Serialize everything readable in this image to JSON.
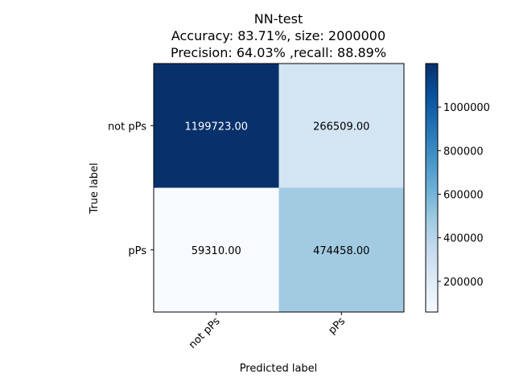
{
  "chart_data": {
    "type": "heatmap",
    "title_lines": [
      "NN-test",
      "Accuracy: 83.71%, size: 2000000",
      "Precision: 64.03% ,recall: 88.89%"
    ],
    "xlabel": "Predicted label",
    "ylabel": "True label",
    "x_categories": [
      "not pPs",
      "pPs"
    ],
    "y_categories": [
      "not pPs",
      "pPs"
    ],
    "values": [
      [
        1199723,
        266509
      ],
      [
        59310,
        474458
      ]
    ],
    "cell_labels": [
      [
        "1199723.00",
        "266509.00"
      ],
      [
        "59310.00",
        "474458.00"
      ]
    ],
    "colormap": "Blues",
    "colorbar": {
      "range": [
        59310,
        1199723
      ],
      "ticks": [
        200000,
        400000,
        600000,
        800000,
        1000000
      ],
      "tick_labels": [
        "200000",
        "400000",
        "600000",
        "800000",
        "1000000"
      ]
    }
  }
}
